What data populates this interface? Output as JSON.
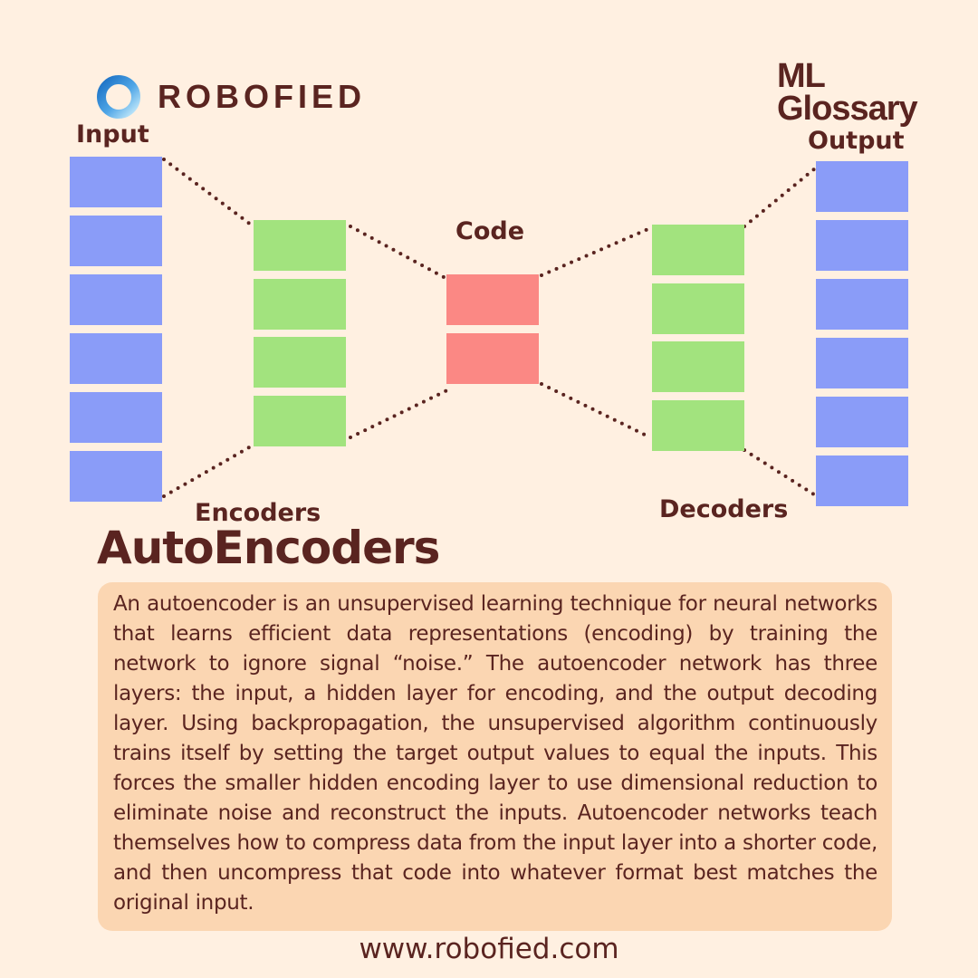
{
  "brand": {
    "name": "ROBOFIED",
    "logo_icon": "ring-logo-icon",
    "tag": "ML Glossary"
  },
  "diagram": {
    "labels": {
      "input": "Input",
      "output": "Output",
      "code": "Code",
      "encoders": "Encoders",
      "decoders": "Decoders"
    },
    "layers": [
      {
        "id": "input",
        "units": 6,
        "color": "#8a9cf8"
      },
      {
        "id": "encoder",
        "units": 4,
        "color": "#a2e37e"
      },
      {
        "id": "code",
        "units": 2,
        "color": "#fb8884"
      },
      {
        "id": "decoder",
        "units": 4,
        "color": "#a2e37e"
      },
      {
        "id": "output",
        "units": 6,
        "color": "#8a9cf8"
      }
    ],
    "connector_style": "dotted"
  },
  "title": "AutoEncoders",
  "description": "An autoencoder is an unsupervised learning technique for neural networks that learns efficient data representations (encoding) by training the network to ignore signal “noise.” The autoencoder network has three layers: the input, a hidden layer for encoding, and the output decoding layer. Using backpropagation, the unsupervised algorithm continuously trains itself by setting the target output values to equal the inputs. This forces the smaller hidden encoding layer to use dimensional reduction to eliminate noise and reconstruct the inputs. Autoencoder networks teach themselves how to compress data from the input layer into a shorter code, and then uncompress that code into whatever format best matches the original input.",
  "website": "www.robofied.com",
  "colors": {
    "background": "#fff0e1",
    "text": "#5a2420",
    "panel": "#fbd6b2",
    "input_output": "#8a9cf8",
    "encoder_decoder": "#a2e37e",
    "code": "#fb8884",
    "logo_light": "#9fd8f5",
    "logo_dark": "#1a6fc4"
  }
}
